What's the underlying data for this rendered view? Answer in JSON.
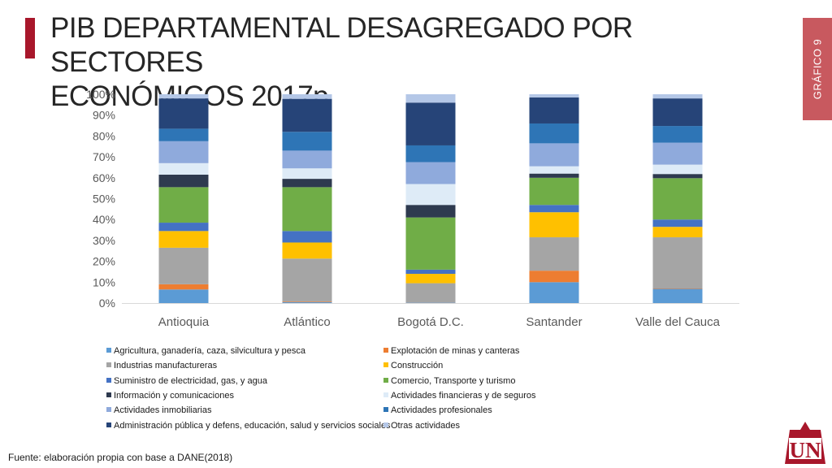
{
  "slide": {
    "title_line1": "PIB DEPARTAMENTAL DESAGREGADO POR SECTORES",
    "title_line2": "ECONÓMICOS 2017p",
    "side_tab": "GRÁFICO 9",
    "source": "Fuente: elaboración propia con base a DANE(2018)",
    "logo_text": "UN",
    "accent_color": "#a8172b"
  },
  "chart_data": {
    "type": "bar",
    "stacked": "percent",
    "categories": [
      "Antioquia",
      "Atlántico",
      "Bogotá D.C.",
      "Santander",
      "Valle del Cauca"
    ],
    "y_ticks": [
      "0%",
      "10%",
      "20%",
      "30%",
      "40%",
      "50%",
      "60%",
      "70%",
      "80%",
      "90%",
      "100%"
    ],
    "ylim": [
      0,
      100
    ],
    "legend_position": "bottom",
    "series": [
      {
        "name": "Agricultura, ganadería, caza, silvicultura y pesca",
        "color": "#5b9bd5",
        "values": [
          6.5,
          0.5,
          0.2,
          10.0,
          6.8
        ]
      },
      {
        "name": "Explotación de minas y canteras",
        "color": "#ed7d31",
        "values": [
          2.5,
          0.3,
          0.1,
          5.5,
          0.2
        ]
      },
      {
        "name": "Industrias manufactureras",
        "color": "#a5a5a5",
        "values": [
          17.5,
          20.5,
          9.2,
          16.0,
          24.5
        ]
      },
      {
        "name": "Construcción",
        "color": "#ffc000",
        "values": [
          8.0,
          7.7,
          4.5,
          12.0,
          5.0
        ]
      },
      {
        "name": "Suministro de electricidad, gas, y agua",
        "color": "#4472c4",
        "values": [
          4.0,
          5.5,
          2.0,
          3.5,
          3.5
        ]
      },
      {
        "name": "Comercio, Transporte y turismo",
        "color": "#70ad47",
        "values": [
          17.0,
          21.0,
          25.0,
          13.0,
          19.8
        ]
      },
      {
        "name": "Información y comunicaciones",
        "color": "#2e3a4f",
        "values": [
          6.0,
          4.0,
          6.0,
          2.0,
          2.0
        ]
      },
      {
        "name": "Actividades financieras y de seguros",
        "color": "#deebf7",
        "values": [
          5.5,
          5.0,
          10.0,
          3.5,
          4.5
        ]
      },
      {
        "name": "Actividades inmobiliarias",
        "color": "#8faadc",
        "values": [
          10.5,
          8.5,
          10.5,
          11.0,
          10.5
        ]
      },
      {
        "name": "Actividades profesionales",
        "color": "#2e75b6",
        "values": [
          6.0,
          9.0,
          8.0,
          9.5,
          8.0
        ]
      },
      {
        "name": "Administración pública y defens, educación, salud y servicios sociales",
        "color": "#264478",
        "values": [
          14.5,
          15.8,
          20.5,
          12.5,
          13.2
        ]
      },
      {
        "name": "Otras actividades",
        "color": "#b4c7e7",
        "values": [
          2.0,
          2.2,
          4.0,
          1.5,
          2.0
        ]
      }
    ]
  }
}
